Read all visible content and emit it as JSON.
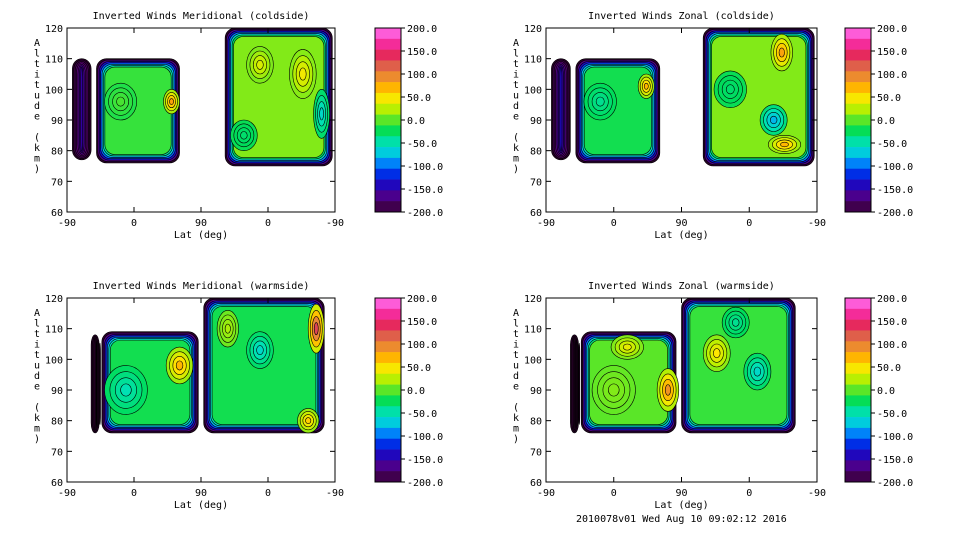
{
  "footer": "2010078v01 Wed Aug 10 09:02:12 2016",
  "chart_data": [
    {
      "type": "heatmap",
      "title": "Inverted Winds Meridional (coldside)",
      "xlabel": "Lat (deg)",
      "ylabel": "Altitude (km)",
      "x_ticks": [
        "-90",
        "0",
        "90",
        "0",
        "-90"
      ],
      "y_ticks": [
        60,
        70,
        80,
        90,
        100,
        110,
        120
      ],
      "ylim": [
        60,
        120
      ],
      "colorbar": {
        "min": -200,
        "max": 200,
        "ticks": [
          "200.0",
          "150.0",
          "100.0",
          "50.0",
          "0.0",
          "-50.0",
          "-100.0",
          "-150.0",
          "-200.0"
        ]
      },
      "regions": [
        {
          "x0": 0.02,
          "x1": 0.09,
          "y0": 77,
          "y1": 110,
          "v": -150
        },
        {
          "x0": 0.11,
          "x1": 0.42,
          "y0": 76,
          "y1": 110,
          "v": -10
        },
        {
          "x0": 0.59,
          "x1": 0.99,
          "y0": 75,
          "y1": 120,
          "v": 10
        }
      ],
      "blobs": [
        {
          "x": 0.39,
          "y": 96,
          "rx": 0.03,
          "ry": 4,
          "v": 80
        },
        {
          "x": 0.2,
          "y": 96,
          "rx": 0.06,
          "ry": 6,
          "v": -5
        },
        {
          "x": 0.72,
          "y": 108,
          "rx": 0.05,
          "ry": 6,
          "v": 35
        },
        {
          "x": 0.88,
          "y": 105,
          "rx": 0.05,
          "ry": 8,
          "v": 45
        },
        {
          "x": 0.95,
          "y": 92,
          "rx": 0.03,
          "ry": 8,
          "v": -60
        },
        {
          "x": 0.66,
          "y": 85,
          "rx": 0.05,
          "ry": 5,
          "v": -30
        }
      ]
    },
    {
      "type": "heatmap",
      "title": "Inverted Winds Zonal (coldside)",
      "xlabel": "Lat (deg)",
      "ylabel": "Altitude (km)",
      "x_ticks": [
        "-90",
        "0",
        "90",
        "0",
        "-90"
      ],
      "y_ticks": [
        60,
        70,
        80,
        90,
        100,
        110,
        120
      ],
      "ylim": [
        60,
        120
      ],
      "colorbar": {
        "min": -200,
        "max": 200,
        "ticks": [
          "200.0",
          "150.0",
          "100.0",
          "50.0",
          "0.0",
          "-50.0",
          "-100.0",
          "-150.0",
          "-200.0"
        ]
      },
      "regions": [
        {
          "x0": 0.02,
          "x1": 0.09,
          "y0": 77,
          "y1": 110,
          "v": -140
        },
        {
          "x0": 0.11,
          "x1": 0.42,
          "y0": 76,
          "y1": 110,
          "v": -20
        },
        {
          "x0": 0.58,
          "x1": 0.99,
          "y0": 75,
          "y1": 120,
          "v": 10
        }
      ],
      "blobs": [
        {
          "x": 0.37,
          "y": 101,
          "rx": 0.03,
          "ry": 4,
          "v": 70
        },
        {
          "x": 0.2,
          "y": 96,
          "rx": 0.06,
          "ry": 6,
          "v": -40
        },
        {
          "x": 0.87,
          "y": 112,
          "rx": 0.04,
          "ry": 6,
          "v": 80
        },
        {
          "x": 0.84,
          "y": 90,
          "rx": 0.05,
          "ry": 5,
          "v": -80
        },
        {
          "x": 0.88,
          "y": 82,
          "rx": 0.06,
          "ry": 3,
          "v": 70
        },
        {
          "x": 0.68,
          "y": 100,
          "rx": 0.06,
          "ry": 6,
          "v": -30
        }
      ]
    },
    {
      "type": "heatmap",
      "title": "Inverted Winds Meridional (warmside)",
      "xlabel": "Lat (deg)",
      "ylabel": "Altitude (km)",
      "x_ticks": [
        "-90",
        "0",
        "90",
        "0",
        "-90"
      ],
      "y_ticks": [
        60,
        70,
        80,
        90,
        100,
        110,
        120
      ],
      "ylim": [
        60,
        120
      ],
      "colorbar": {
        "min": -200,
        "max": 200,
        "ticks": [
          "200.0",
          "150.0",
          "100.0",
          "50.0",
          "0.0",
          "-50.0",
          "-100.0",
          "-150.0",
          "-200.0"
        ]
      },
      "regions": [
        {
          "x0": 0.09,
          "x1": 0.12,
          "y0": 76,
          "y1": 108,
          "v": -200
        },
        {
          "x0": 0.13,
          "x1": 0.49,
          "y0": 76,
          "y1": 109,
          "v": -20
        },
        {
          "x0": 0.51,
          "x1": 0.96,
          "y0": 76,
          "y1": 120,
          "v": -20
        }
      ],
      "blobs": [
        {
          "x": 0.42,
          "y": 98,
          "rx": 0.05,
          "ry": 6,
          "v": 70
        },
        {
          "x": 0.22,
          "y": 90,
          "rx": 0.08,
          "ry": 8,
          "v": -50
        },
        {
          "x": 0.93,
          "y": 110,
          "rx": 0.03,
          "ry": 8,
          "v": 130
        },
        {
          "x": 0.9,
          "y": 80,
          "rx": 0.04,
          "ry": 4,
          "v": 60
        },
        {
          "x": 0.72,
          "y": 103,
          "rx": 0.05,
          "ry": 6,
          "v": -60
        },
        {
          "x": 0.6,
          "y": 110,
          "rx": 0.04,
          "ry": 6,
          "v": 20
        }
      ]
    },
    {
      "type": "heatmap",
      "title": "Inverted Winds Zonal (warmside)",
      "xlabel": "Lat (deg)",
      "ylabel": "Altitude (km)",
      "x_ticks": [
        "-90",
        "0",
        "90",
        "0",
        "-90"
      ],
      "y_ticks": [
        60,
        70,
        80,
        90,
        100,
        110,
        120
      ],
      "ylim": [
        60,
        120
      ],
      "colorbar": {
        "min": -200,
        "max": 200,
        "ticks": [
          "200.0",
          "150.0",
          "100.0",
          "50.0",
          "0.0",
          "-50.0",
          "-100.0",
          "-150.0",
          "-200.0"
        ]
      },
      "regions": [
        {
          "x0": 0.09,
          "x1": 0.12,
          "y0": 76,
          "y1": 108,
          "v": -200
        },
        {
          "x0": 0.13,
          "x1": 0.48,
          "y0": 76,
          "y1": 109,
          "v": 0
        },
        {
          "x0": 0.5,
          "x1": 0.92,
          "y0": 76,
          "y1": 120,
          "v": -10
        }
      ],
      "blobs": [
        {
          "x": 0.45,
          "y": 90,
          "rx": 0.04,
          "ry": 7,
          "v": 90
        },
        {
          "x": 0.25,
          "y": 90,
          "rx": 0.08,
          "ry": 8,
          "v": 10
        },
        {
          "x": 0.63,
          "y": 102,
          "rx": 0.05,
          "ry": 6,
          "v": 50
        },
        {
          "x": 0.78,
          "y": 96,
          "rx": 0.05,
          "ry": 6,
          "v": -60
        },
        {
          "x": 0.3,
          "y": 104,
          "rx": 0.06,
          "ry": 4,
          "v": 40
        },
        {
          "x": 0.7,
          "y": 112,
          "rx": 0.05,
          "ry": 5,
          "v": -40
        }
      ]
    }
  ]
}
